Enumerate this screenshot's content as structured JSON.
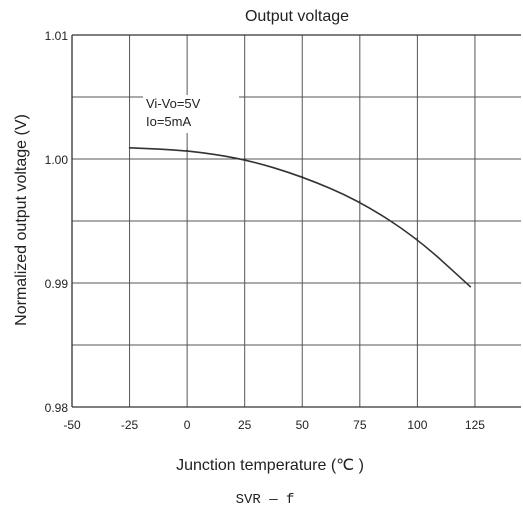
{
  "chart_data": {
    "type": "line",
    "title": "Output voltage",
    "xlabel": "Junction temperature  (℃ )",
    "ylabel": "Normalized output voltage (V)",
    "xlim": [
      -50,
      145
    ],
    "ylim": [
      0.98,
      1.01
    ],
    "x_ticks": [
      -50,
      -25,
      0,
      25,
      50,
      75,
      100,
      125
    ],
    "x_tick_labels": [
      "-50",
      "-25",
      "0",
      "25",
      "50",
      "75",
      "100",
      "125"
    ],
    "y_ticks": [
      0.98,
      0.99,
      1.0,
      1.01
    ],
    "y_tick_labels": [
      "0.98",
      "0.99",
      "1.00",
      "1.01"
    ],
    "grid": true,
    "series": [
      {
        "x": [
          -25,
          0,
          25,
          50,
          75,
          100,
          123
        ],
        "y": [
          1.0009,
          1.0007,
          1.0,
          0.9986,
          0.9966,
          0.9936,
          0.9897
        ]
      }
    ],
    "annotations": [
      "Vi-Vo=5V",
      "Io=5mA"
    ],
    "caption": "SVR — f"
  }
}
